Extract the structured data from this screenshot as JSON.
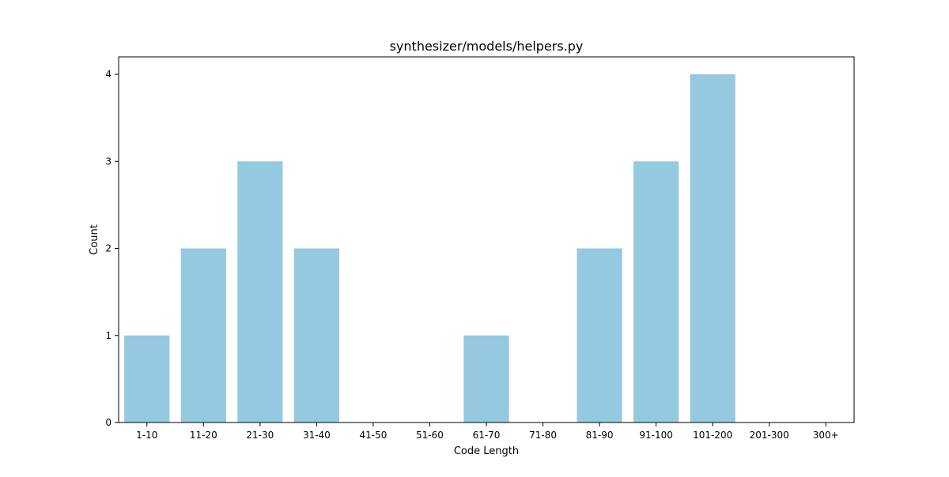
{
  "chart_data": {
    "type": "bar",
    "title": "synthesizer/models/helpers.py",
    "xlabel": "Code Length",
    "ylabel": "Count",
    "categories": [
      "1-10",
      "11-20",
      "21-30",
      "31-40",
      "41-50",
      "51-60",
      "61-70",
      "71-80",
      "81-90",
      "91-100",
      "101-200",
      "201-300",
      "300+"
    ],
    "values": [
      1,
      2,
      3,
      2,
      0,
      0,
      1,
      0,
      2,
      3,
      4,
      0,
      0
    ],
    "yticks": [
      0,
      1,
      2,
      3,
      4
    ],
    "ylim": [
      0,
      4.2
    ],
    "grid": false,
    "legend": "none",
    "bar_color": "#95c9df"
  }
}
